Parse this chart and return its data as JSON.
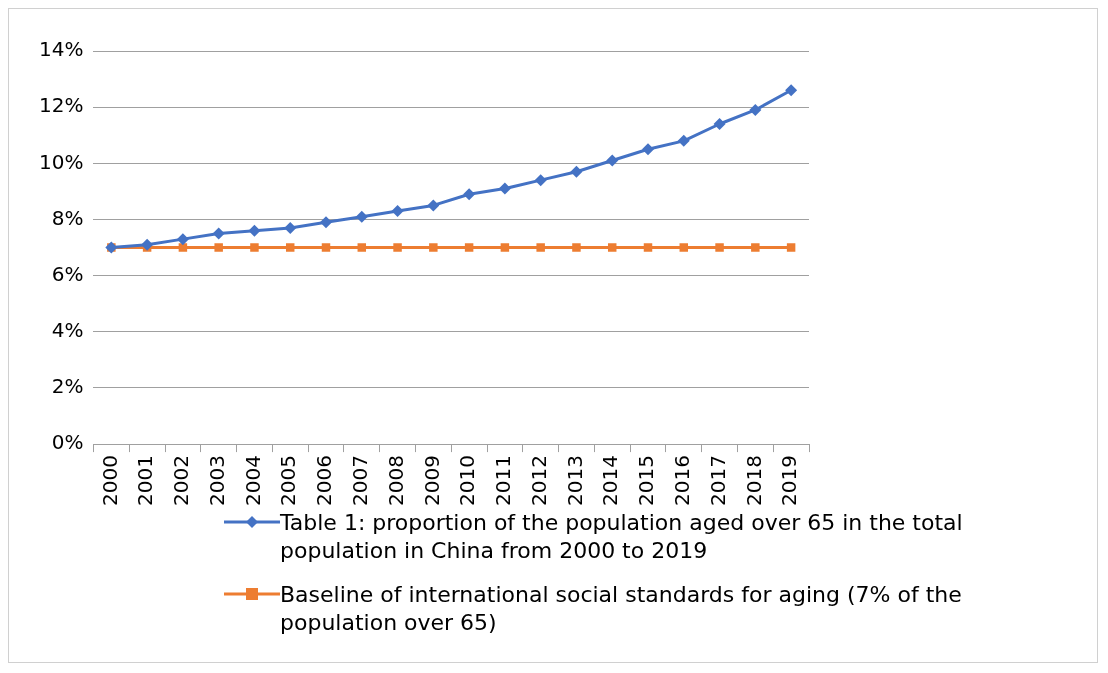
{
  "chart_data": {
    "type": "line",
    "categories": [
      "2000",
      "2001",
      "2002",
      "2003",
      "2004",
      "2005",
      "2006",
      "2007",
      "2008",
      "2009",
      "2010",
      "2011",
      "2012",
      "2013",
      "2014",
      "2015",
      "2016",
      "2017",
      "2018",
      "2019"
    ],
    "series": [
      {
        "name": "Table 1: proportion of the population aged over 65 in the total population in China from 2000 to 2019",
        "color": "#4472c4",
        "marker": "diamond",
        "values": [
          7.0,
          7.1,
          7.3,
          7.5,
          7.6,
          7.7,
          7.9,
          8.1,
          8.3,
          8.5,
          8.9,
          9.1,
          9.4,
          9.7,
          10.1,
          10.5,
          10.8,
          11.4,
          11.9,
          12.6
        ]
      },
      {
        "name": "Baseline of international social standards for aging (7% of the population over 65)",
        "color": "#ed7d31",
        "marker": "square",
        "values": [
          7,
          7,
          7,
          7,
          7,
          7,
          7,
          7,
          7,
          7,
          7,
          7,
          7,
          7,
          7,
          7,
          7,
          7,
          7,
          7
        ]
      }
    ],
    "ylim": [
      0,
      14
    ],
    "yticks": [
      {
        "value": 0,
        "label": "0%"
      },
      {
        "value": 2,
        "label": "2%"
      },
      {
        "value": 4,
        "label": "4%"
      },
      {
        "value": 6,
        "label": "6%"
      },
      {
        "value": 8,
        "label": "8%"
      },
      {
        "value": 10,
        "label": "10%"
      },
      {
        "value": 12,
        "label": "12%"
      },
      {
        "value": 14,
        "label": "14%"
      }
    ],
    "grid": "y",
    "legend": "bottom",
    "line_style": "solid"
  }
}
